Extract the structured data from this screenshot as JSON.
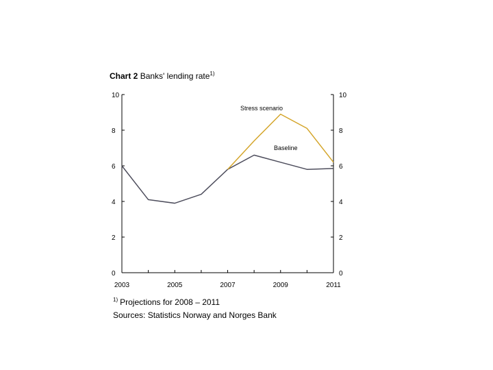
{
  "title": {
    "prefix": "Chart 2",
    "text": "Banks' lending rate",
    "marker": "1)"
  },
  "footnote": {
    "marker": "1)",
    "text": "Projections for 2008 – 2011"
  },
  "sources": "Sources: Statistics Norway and Norges Bank",
  "colors": {
    "baseline": "#4d4d5c",
    "stress": "#d4a52a",
    "axis": "#000000"
  },
  "chart_data": {
    "type": "line",
    "x": [
      2003,
      2004,
      2005,
      2006,
      2007,
      2008,
      2009,
      2010,
      2011
    ],
    "xticks": [
      "2003",
      "2005",
      "2007",
      "2009",
      "2011"
    ],
    "xtick_values": [
      2003,
      2005,
      2007,
      2009,
      2011
    ],
    "xlim": [
      2003,
      2011
    ],
    "ylim": [
      0,
      10
    ],
    "yticks": [
      "0",
      "2",
      "4",
      "6",
      "8",
      "10"
    ],
    "ytick_values": [
      0,
      2,
      4,
      6,
      8,
      10
    ],
    "grid": false,
    "series": [
      {
        "name": "Baseline",
        "key": "baseline",
        "values": [
          6.0,
          4.1,
          3.9,
          4.4,
          5.8,
          6.6,
          6.2,
          5.8,
          5.85
        ]
      },
      {
        "name": "Stress scenario",
        "key": "stress",
        "values": [
          null,
          null,
          null,
          null,
          5.8,
          7.4,
          8.9,
          8.1,
          6.2
        ]
      }
    ]
  }
}
